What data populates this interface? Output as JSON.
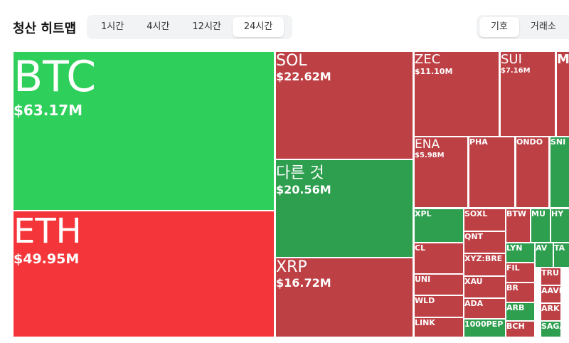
{
  "header": {
    "title": "청산 히트맵"
  },
  "time_tabs": [
    "1시간",
    "4시간",
    "12시간",
    "24시간"
  ],
  "view_tabs": [
    "기호",
    "거래소"
  ],
  "tiles": [
    {
      "label": "BTC",
      "value": "$63.17M",
      "color": "#2fcf5b"
    },
    {
      "label": "ETH",
      "value": "$49.95M",
      "color": "#f4363a"
    },
    {
      "label": "SOL",
      "value": "$22.62M",
      "color": "#bd4045"
    },
    {
      "label": "다른 것",
      "value": "$20.56M",
      "color": "#2e9e4f"
    },
    {
      "label": "XRP",
      "value": "$16.72M",
      "color": "#bd4045"
    },
    {
      "label": "ZEC",
      "value": "$11.10M",
      "color": "#bd4045"
    },
    {
      "label": "SUI",
      "value": "$7.16M",
      "color": "#bd4045"
    },
    {
      "label": "M",
      "color": "#bd4045"
    },
    {
      "label": "ENA",
      "value": "$5.98M",
      "color": "#bd4045"
    },
    {
      "label": "PHA",
      "color": "#bd4045"
    },
    {
      "label": "ONDO",
      "color": "#bd4045"
    },
    {
      "label": "SNI",
      "color": "#2e9e4f"
    },
    {
      "label": "XPL",
      "color": "#2e9e4f"
    },
    {
      "label": "CL",
      "color": "#bd4045"
    },
    {
      "label": "UNI",
      "color": "#bd4045"
    },
    {
      "label": "WLD",
      "color": "#bd4045"
    },
    {
      "label": "LINK",
      "color": "#bd4045"
    },
    {
      "label": "SOXL",
      "color": "#bd4045"
    },
    {
      "label": "QNT",
      "color": "#bd4045"
    },
    {
      "label": "XYZ:BRE",
      "color": "#bd4045"
    },
    {
      "label": "XAU",
      "color": "#bd4045"
    },
    {
      "label": "ADA",
      "color": "#bd4045"
    },
    {
      "label": "1000PEP",
      "color": "#2e9e4f"
    },
    {
      "label": "BTW",
      "color": "#bd4045"
    },
    {
      "label": "MU",
      "color": "#2e9e4f"
    },
    {
      "label": "HY",
      "color": "#2e9e4f"
    },
    {
      "label": "LYN",
      "color": "#2e9e4f"
    },
    {
      "label": "FIL",
      "color": "#bd4045"
    },
    {
      "label": "BR",
      "color": "#bd4045"
    },
    {
      "label": "ARB",
      "color": "#2e9e4f"
    },
    {
      "label": "BCH",
      "color": "#bd4045"
    },
    {
      "label": "AV",
      "color": "#2e9e4f"
    },
    {
      "label": "TA",
      "color": "#2e9e4f"
    },
    {
      "label": "TRU",
      "color": "#bd4045"
    },
    {
      "label": "AAVE",
      "color": "#bd4045"
    },
    {
      "label": "ARK",
      "color": "#bd4045"
    },
    {
      "label": "SAGA",
      "color": "#2e9e4f"
    }
  ]
}
